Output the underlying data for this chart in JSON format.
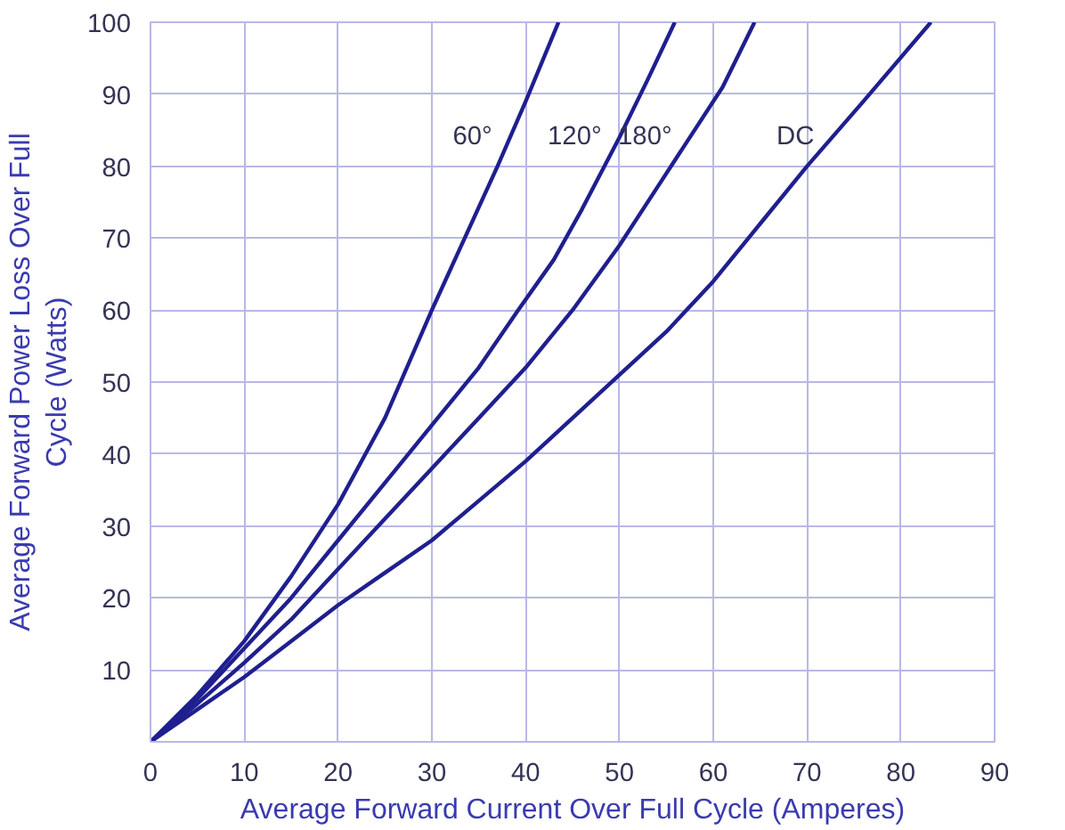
{
  "chart_data": {
    "type": "line",
    "xlabel": "Average Forward Current Over Full Cycle (Amperes)",
    "ylabel": "Average Forward Power Loss Over Full\nCycle (Watts)",
    "xlim": [
      0,
      90
    ],
    "ylim": [
      0,
      100
    ],
    "xticks": [
      0,
      10,
      20,
      30,
      40,
      50,
      60,
      70,
      80,
      90
    ],
    "yticks": [
      10,
      20,
      30,
      40,
      50,
      60,
      70,
      80,
      90,
      100
    ],
    "grid": true,
    "marker": "none",
    "line_style": "solid",
    "series": [
      {
        "name": "60°",
        "color": "#1f1f8f",
        "x": [
          0,
          5,
          10,
          15,
          20,
          25,
          30,
          33.5,
          37,
          40,
          43.5
        ],
        "values": [
          0,
          6.5,
          14,
          23,
          33,
          45,
          60,
          70,
          80,
          89,
          100
        ]
      },
      {
        "name": "120°",
        "color": "#1f1f8f",
        "x": [
          0,
          5,
          10,
          15,
          20,
          25,
          30,
          35,
          39.2,
          43,
          46,
          50,
          53,
          55.9
        ],
        "values": [
          0,
          6,
          13,
          20,
          28,
          36,
          44,
          52,
          60,
          67,
          74,
          84,
          92,
          100
        ]
      },
      {
        "name": "180°",
        "color": "#1f1f8f",
        "x": [
          0,
          5,
          10,
          15,
          20,
          25,
          30,
          35,
          40,
          45,
          50,
          54,
          57,
          61,
          64.4
        ],
        "values": [
          0,
          5.3,
          11,
          17,
          24,
          31,
          38,
          45,
          52,
          60,
          69,
          77,
          83,
          91,
          100
        ]
      },
      {
        "name": "DC",
        "color": "#1f1f8f",
        "x": [
          0,
          5,
          10,
          15,
          20,
          25,
          30,
          35,
          40,
          45,
          50,
          55,
          60,
          65,
          70,
          76,
          83.2
        ],
        "values": [
          0,
          4.5,
          9,
          14,
          19,
          23.5,
          28,
          33.5,
          39,
          45,
          51,
          57,
          64,
          72,
          80,
          89,
          100
        ]
      }
    ]
  }
}
